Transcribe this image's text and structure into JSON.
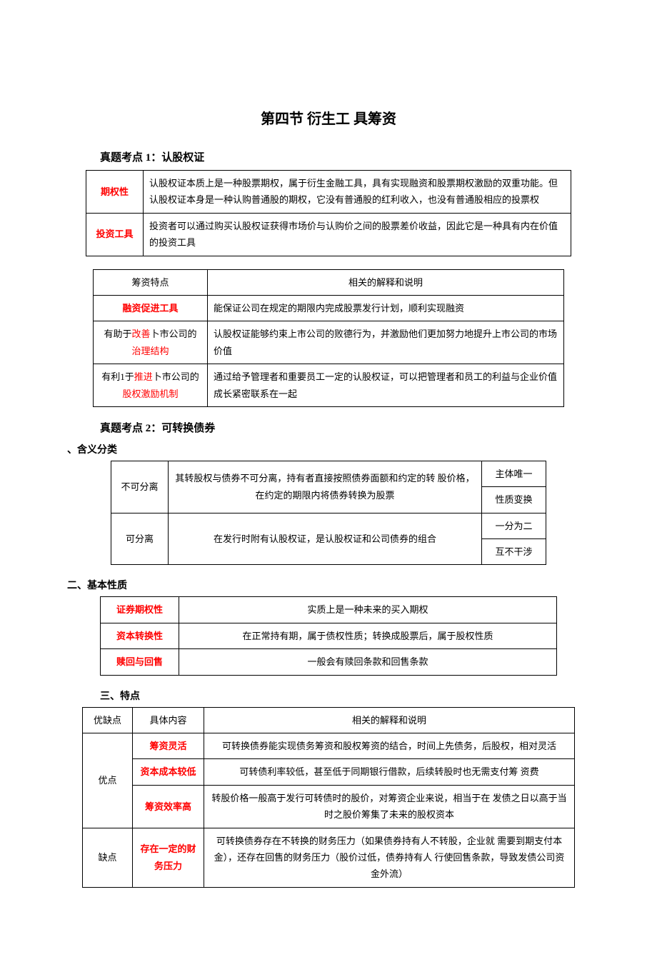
{
  "colors": {
    "text": "#000000",
    "accent": "#ff0000",
    "border": "#000000",
    "background": "#ffffff"
  },
  "title": "第四节  衍生工  具筹资",
  "topic1": {
    "heading": "真题考点 1：认股权证",
    "table1": {
      "r1_label": "期权性",
      "r1_text": "认股权证本质上是一种股票期权，属于衍生金融工具，具有实现融资和股票期权激励的双重功能。但认股权证本身是一种认购普通股的期权，它没有普通股的红利收入，也没有普通股相应的投票权",
      "r2_label": "投资工具",
      "r2_text": "投资者可以通过购买认股权证获得市场价与认购价之间的股票差价收益，因此它是一种具有内在价值的投资工具"
    },
    "table2": {
      "h1": "筹资特点",
      "h2": "相关的解释和说明",
      "r1_label": "融资促进工具",
      "r1_text": "能保证公司在规定的期限内完成股票发行计划，顺利实现融资",
      "r2_pre": "有助于",
      "r2_red1": "改善",
      "r2_mid": "卜市公司的",
      "r2_red2": "治理结构",
      "r2_text": "认股权证能够约束上市公司的败德行为，并激励他们更加努力地提升上市公司的市场价值",
      "r3_pre": "有利1于",
      "r3_red1": "推进",
      "r3_mid": "卜市公司的",
      "r3_red2": "股权激励机制",
      "r3_text": "通过给予管理者和重要员工一定的认股权证，可以把管理者和员工的利益与企业价值成长紧密联系在一起"
    }
  },
  "topic2": {
    "heading": "真题考点 2：可转换债券",
    "section1": "、含义分类",
    "table3": {
      "r1_c1": "不可分离",
      "r1_c2": "其转股权与债券不可分离，持有者直接按照债券面额和约定的转 股价格，在约定的期限内将债券转换为股票",
      "r1_c3a": "主体唯一",
      "r1_c3b": "性质变换",
      "r2_c1": "可分离",
      "r2_c2": "在发行时附有认股权证，是认股权证和公司债券的组合",
      "r2_c3a": "一分为二",
      "r2_c3b": "互不干涉"
    },
    "section2": "二、基本性质",
    "table4": {
      "r1_label": "证券期权性",
      "r1_text": "实质上是一种未来的买入期权",
      "r2_label": "资本转换性",
      "r2_text": "在正常持有期，属于债权性质；转换成股票后，属于股权性质",
      "r3_label": "赎回与回售",
      "r3_text": "一般会有赎回条款和回售条款"
    },
    "section3": "三、特点",
    "table5": {
      "h1": "优缺点",
      "h2": "具体内容",
      "h3": "相关的解释和说明",
      "adv_label": "优点",
      "adv1_label": "筹资灵活",
      "adv1_text": "可转换债券能实现债务筹资和股权筹资的结合，时间上先债务，后股权，相对灵活",
      "adv2_label": "资本成本较低",
      "adv2_text": "可转债利率较低，甚至低于同期银行借款，后续转股时也无需支付筹 资费",
      "adv3_label": "筹资效率高",
      "adv3_text": "转股价格一般高于发行可转债时的股价，对筹资企业来说，相当于在 发债之日以高于当时之股价筹集了未来的股权资本",
      "dis_label": "缺点",
      "dis1_label": "存在一定的财务压力",
      "dis1_text": "可转换债券存在不转换的财务压力（如果债券持有人不转股，企业就 需要到期支付本金），还存在回售的财务压力（股价过低，债券持有人 行使回售条款，导致发债公司资金外流）"
    }
  }
}
